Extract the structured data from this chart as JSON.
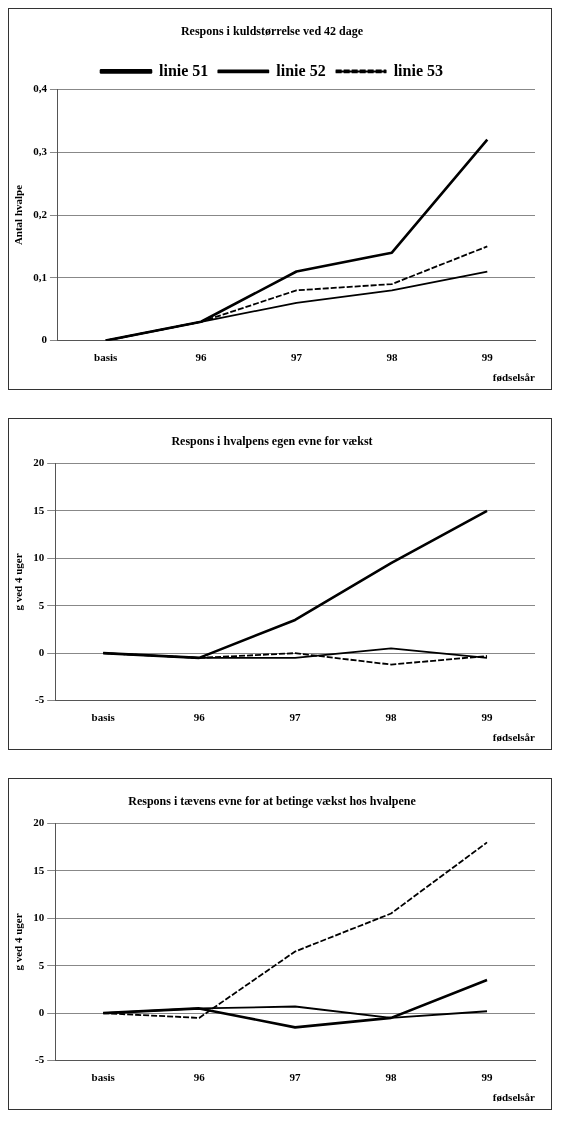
{
  "chart_data": [
    {
      "type": "line",
      "title": "Respons i kuldstørrelse ved 42 dage",
      "xlabel": "fødselsår",
      "ylabel": "Antal hvalpe",
      "categories": [
        "basis",
        "96",
        "97",
        "98",
        "99"
      ],
      "legend": "top",
      "grid": "y",
      "marker": "none",
      "ylim": [
        0,
        0.4
      ],
      "yticks": [
        0,
        {
          "value": 0.1,
          "label": "0,1"
        },
        {
          "value": 0.2,
          "label": "0,2"
        },
        {
          "value": 0.3,
          "label": "0,3"
        },
        {
          "value": 0.4,
          "label": "0,4"
        }
      ],
      "series": [
        {
          "name": "linie 51",
          "color": "#000000",
          "line_style": "solid",
          "values": [
            0,
            0.03,
            0.11,
            0.14,
            0.32
          ]
        },
        {
          "name": "linie 52",
          "color": "#000000",
          "line_style": "solid",
          "values": [
            0,
            0.03,
            0.06,
            0.08,
            0.11
          ]
        },
        {
          "name": "linie 53",
          "color": "#000000",
          "line_style": "dashed",
          "values": [
            0,
            0.03,
            0.08,
            0.09,
            0.15
          ]
        }
      ]
    },
    {
      "type": "line",
      "title": "Respons i hvalpens egen evne for vækst",
      "xlabel": "fødselsår",
      "ylabel": "g ved 4 uger",
      "categories": [
        "basis",
        "96",
        "97",
        "98",
        "99"
      ],
      "grid": "y",
      "marker": "none",
      "ylim": [
        -5,
        20
      ],
      "yticks": [
        -5,
        0,
        5,
        10,
        15,
        20
      ],
      "series": [
        {
          "color": "#000000",
          "line_style": "solid",
          "values": [
            0,
            -0.5,
            3.5,
            9.5,
            15
          ]
        },
        {
          "color": "#000000",
          "line_style": "solid",
          "values": [
            0,
            -0.5,
            -0.5,
            0.5,
            -0.5
          ]
        },
        {
          "color": "#000000",
          "line_style": "dashed",
          "values": [
            0,
            -0.5,
            0,
            -1.2,
            -0.3
          ]
        }
      ]
    },
    {
      "type": "line",
      "title": "Respons i tævens evne for at betinge vækst hos hvalpene",
      "xlabel": "fødselsår",
      "ylabel": "g ved 4 uger",
      "categories": [
        "basis",
        "96",
        "97",
        "98",
        "99"
      ],
      "grid": "y",
      "marker": "none",
      "ylim": [
        -5,
        20
      ],
      "yticks": [
        -5,
        0,
        5,
        10,
        15,
        20
      ],
      "series": [
        {
          "color": "#000000",
          "line_style": "solid",
          "values": [
            0,
            0.5,
            -1.5,
            -0.5,
            3.5
          ]
        },
        {
          "color": "#000000",
          "line_style": "solid",
          "values": [
            0,
            0.5,
            0.7,
            -0.5,
            0.2
          ]
        },
        {
          "color": "#000000",
          "line_style": "dashed",
          "values": [
            0,
            -0.5,
            6.5,
            10.5,
            18
          ]
        }
      ]
    }
  ]
}
